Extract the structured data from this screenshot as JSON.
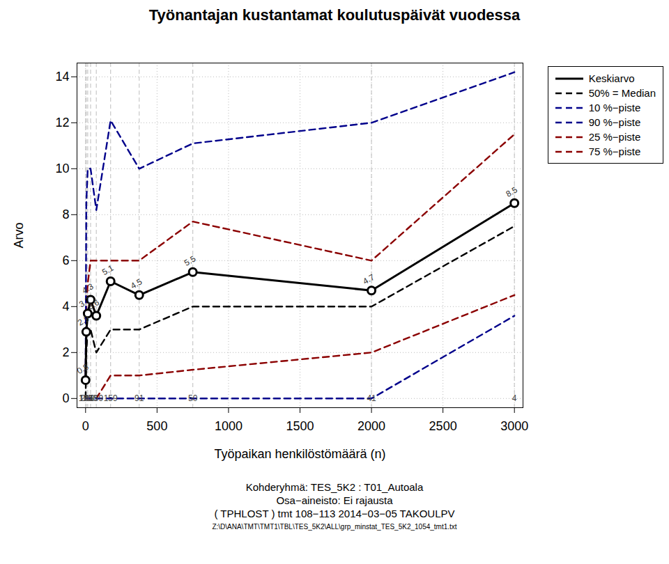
{
  "chart_data": {
    "type": "line",
    "title": "Työnantajan kustantamat koulutuspäivät vuodessa",
    "x_label": "Työpaikan henkilöstömäärä (n)",
    "y_label": "Arvo",
    "caption": [
      "Kohderyhmä:  TES_5K2 : T01_Autoala",
      "Osa−aineisto: Ei rajausta",
      "( TPHLOST )  tmt 108−113 2014−03−05 TAKOULPV",
      "Z:\\D\\ANA\\TMT\\TMT1\\TBL\\TES_5K2\\ALL\\grp_minstat_TES_5K2_1054_tmt1.txt"
    ],
    "x": [
      0,
      5,
      15,
      35,
      75,
      175,
      375,
      750,
      2000,
      3000
    ],
    "n_counts": [
      120,
      185,
      210,
      170,
      159,
      159,
      91,
      50,
      41,
      4
    ],
    "series": [
      {
        "name": "Keskiarvo",
        "color": "#000000",
        "line_style": "solid",
        "marker": "circle",
        "data_labels": true,
        "values": [
          0.8,
          2.9,
          3.7,
          4.3,
          3.6,
          5.1,
          4.5,
          5.5,
          4.7,
          8.5
        ]
      },
      {
        "name": "50% = Median",
        "color": "#000000",
        "line_style": "dashed",
        "values": [
          0,
          2,
          3,
          3,
          2,
          3,
          3,
          4,
          4,
          7.5
        ]
      },
      {
        "name": "10 %−piste",
        "color": "#00008b",
        "line_style": "dashed",
        "values": [
          0,
          0,
          0,
          0,
          0,
          0,
          0,
          0,
          0,
          3.6
        ]
      },
      {
        "name": "90 %−piste",
        "color": "#00008b",
        "line_style": "dashed",
        "values": [
          1,
          8.5,
          10,
          10,
          8.2,
          12.1,
          10,
          11.1,
          12,
          14.2
        ]
      },
      {
        "name": "25 %−piste",
        "color": "#8b0000",
        "line_style": "dashed",
        "values": [
          0,
          0,
          0,
          0,
          0,
          1,
          1,
          1.25,
          2,
          4.5
        ]
      },
      {
        "name": "75 %−piste",
        "color": "#8b0000",
        "line_style": "dashed",
        "values": [
          1,
          4,
          5,
          6,
          6,
          6,
          6,
          7.7,
          6,
          11.5
        ]
      }
    ],
    "xlim": [
      -60,
      3060
    ],
    "ylim": [
      -0.4,
      14.6
    ],
    "xticks": [
      0,
      500,
      1000,
      1500,
      2000,
      2500,
      3000
    ],
    "yticks": [
      0,
      2,
      4,
      6,
      8,
      10,
      12,
      14
    ],
    "grid": true,
    "legend": "top-right"
  }
}
